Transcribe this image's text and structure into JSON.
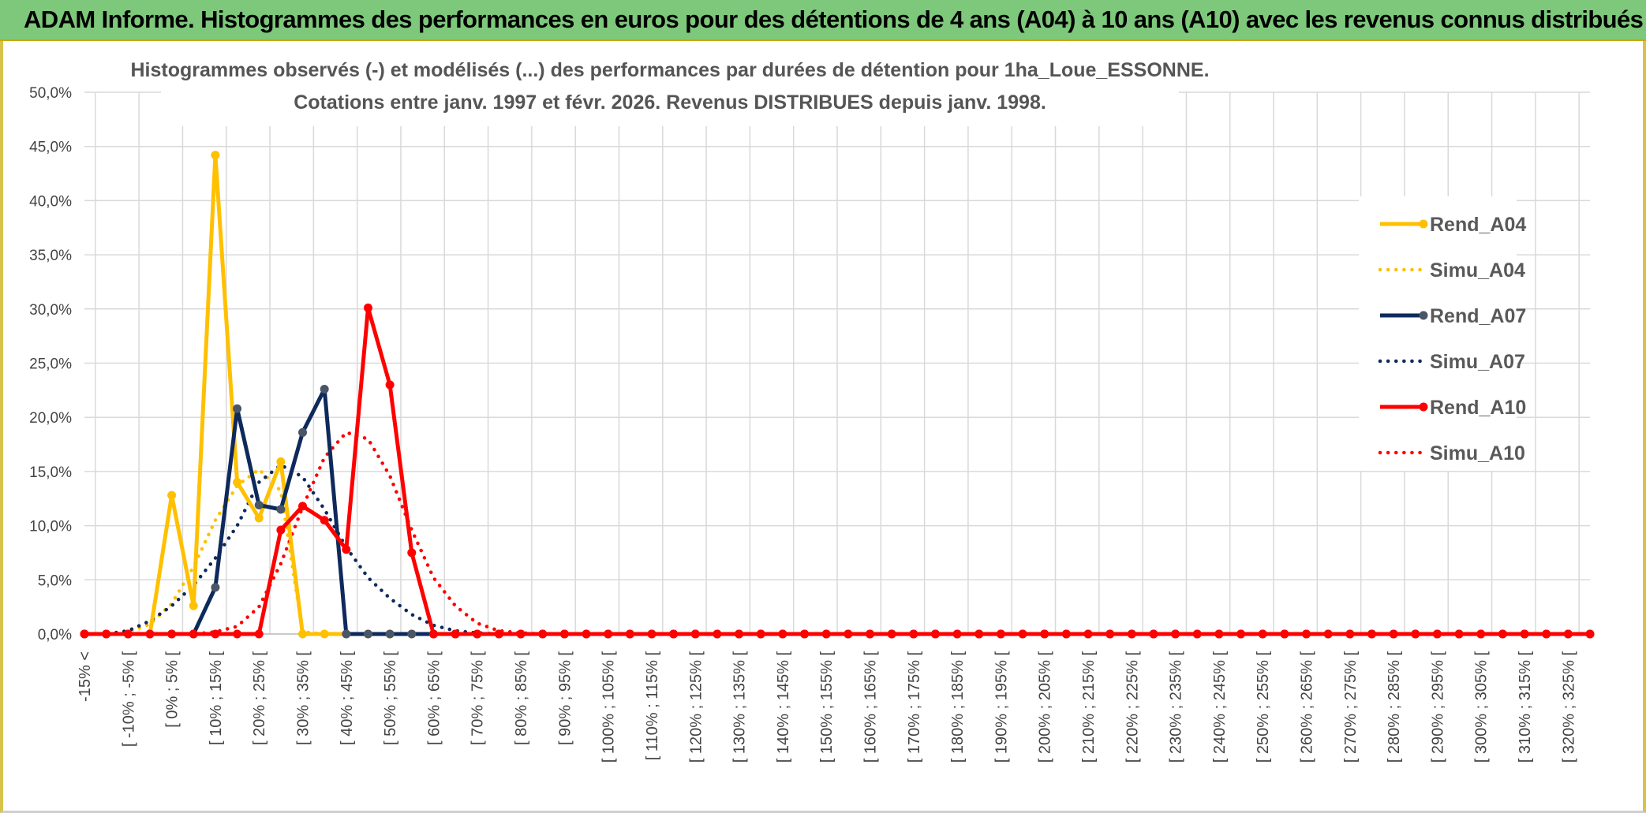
{
  "header": {
    "title": "ADAM Informe. Histogrammes des performances en euros pour des détentions de 4 ans (A04) à 10 ans (A10) avec les revenus connus distribués"
  },
  "chart_data": {
    "type": "line",
    "title": "Histogrammes observés (-) et modélisés (...) des performances par durées de détention pour 1ha_Loue_ESSONNE.",
    "subtitle": "Cotations entre janv. 1997 et févr. 2026. Revenus DISTRIBUES depuis janv. 1998.",
    "xlabel": "",
    "ylabel": "",
    "ylim": [
      0,
      50
    ],
    "yticks": [
      "0,0%",
      "5,0%",
      "10,0%",
      "15,0%",
      "20,0%",
      "25,0%",
      "30,0%",
      "35,0%",
      "40,0%",
      "45,0%",
      "50,0%"
    ],
    "grid": true,
    "legend_position": "right",
    "x": [
      -15,
      -10,
      -5,
      0,
      5,
      10,
      15,
      20,
      25,
      30,
      35,
      40,
      45,
      50,
      55,
      60,
      65,
      70,
      75,
      80,
      85,
      90,
      95,
      100,
      105,
      110,
      115,
      120,
      125,
      130,
      135,
      140,
      145,
      150,
      155,
      160,
      165,
      170,
      175,
      180,
      185,
      190,
      195,
      200,
      205,
      210,
      215,
      220,
      225,
      230,
      235,
      240,
      245,
      250,
      255,
      260,
      265,
      270,
      275,
      280,
      285,
      290,
      295,
      300,
      305,
      310,
      315,
      320,
      325,
      330
    ],
    "x_tick_labels": [
      "-15% <",
      "[ -10% ; -5% [",
      "[ 0% ; 5% [",
      "[ 10% ; 15% [",
      "[ 20% ; 25% [",
      "[ 30% ; 35% [",
      "[ 40% ; 45% [",
      "[ 50% ; 55% [",
      "[ 60% ; 65% [",
      "[ 70% ; 75% [",
      "[ 80% ; 85% [",
      "[ 90% ; 95% [",
      "[ 100% ; 105% [",
      "[ 110% ; 115% [",
      "[ 120% ; 125% [",
      "[ 130% ; 135% [",
      "[ 140% ; 145% [",
      "[ 150% ; 155% [",
      "[ 160% ; 165% [",
      "[ 170% ; 175% [",
      "[ 180% ; 185% [",
      "[ 190% ; 195% [",
      "[ 200% ; 205% [",
      "[ 210% ; 215% [",
      "[ 220% ; 225% [",
      "[ 230% ; 235% [",
      "[ 240% ; 245% [",
      "[ 250% ; 255% [",
      "[ 260% ; 265% [",
      "[ 270% ; 275% [",
      "[ 280% ; 285% [",
      "[ 290% ; 295% [",
      "[ 300% ; 305% [",
      "[ 310% ; 315% [",
      "[ 320% ; 325% ["
    ],
    "x_tick_values": [
      -15,
      -5,
      5,
      15,
      25,
      35,
      45,
      55,
      65,
      75,
      85,
      95,
      105,
      115,
      125,
      135,
      145,
      155,
      165,
      175,
      185,
      195,
      205,
      215,
      225,
      235,
      245,
      255,
      265,
      275,
      285,
      295,
      305,
      315,
      325
    ],
    "series": [
      {
        "name": "Rend_A04",
        "style": "solid",
        "markers": true,
        "color": "#ffc000",
        "values": [
          0,
          0,
          0,
          0,
          12.8,
          2.6,
          44.2,
          14,
          10.7,
          15.9,
          0,
          0,
          0,
          0,
          0,
          0,
          0,
          0,
          0,
          0,
          0,
          0,
          0,
          0,
          0,
          0,
          0,
          0,
          0,
          0,
          0,
          0,
          0,
          0,
          0,
          0,
          0,
          0,
          0,
          0,
          0,
          0,
          0,
          0,
          0,
          0,
          0,
          0,
          0,
          0,
          0,
          0,
          0,
          0,
          0,
          0,
          0,
          0,
          0,
          0,
          0,
          0,
          0,
          0,
          0,
          0,
          0,
          0,
          0,
          0
        ]
      },
      {
        "name": "Simu_A04",
        "style": "dotted",
        "markers": false,
        "color": "#ffc000",
        "values": [
          0,
          0,
          0.2,
          0.9,
          2.8,
          6.2,
          10.5,
          13.7,
          15.2,
          13.2,
          0.2,
          0,
          0,
          0,
          0,
          0,
          0,
          0,
          0,
          0,
          0,
          0,
          0,
          0,
          0,
          0,
          0,
          0,
          0,
          0,
          0,
          0,
          0,
          0,
          0,
          0,
          0,
          0,
          0,
          0,
          0,
          0,
          0,
          0,
          0,
          0,
          0,
          0,
          0,
          0,
          0,
          0,
          0,
          0,
          0,
          0,
          0,
          0,
          0,
          0,
          0,
          0,
          0,
          0,
          0,
          0,
          0,
          0,
          0,
          0
        ]
      },
      {
        "name": "Rend_A07",
        "style": "solid",
        "markers": true,
        "color": "#0e2a5c",
        "values": [
          0,
          0,
          0,
          0,
          0,
          0,
          4.3,
          20.8,
          11.9,
          11.5,
          18.6,
          22.6,
          0,
          0,
          0,
          0,
          0,
          0,
          0,
          0,
          0,
          0,
          0,
          0,
          0,
          0,
          0,
          0,
          0,
          0,
          0,
          0,
          0,
          0,
          0,
          0,
          0,
          0,
          0,
          0,
          0,
          0,
          0,
          0,
          0,
          0,
          0,
          0,
          0,
          0,
          0,
          0,
          0,
          0,
          0,
          0,
          0,
          0,
          0,
          0,
          0,
          0,
          0,
          0,
          0,
          0,
          0,
          0,
          0,
          0
        ]
      },
      {
        "name": "Simu_A07",
        "style": "dotted",
        "markers": false,
        "color": "#0e2a5c",
        "values": [
          0,
          0,
          0.3,
          1.2,
          2.6,
          4.5,
          7,
          10,
          14,
          15.6,
          14.5,
          11.5,
          8,
          5.2,
          3.3,
          1.8,
          0.8,
          0.3,
          0.1,
          0,
          0,
          0,
          0,
          0,
          0,
          0,
          0,
          0,
          0,
          0,
          0,
          0,
          0,
          0,
          0,
          0,
          0,
          0,
          0,
          0,
          0,
          0,
          0,
          0,
          0,
          0,
          0,
          0,
          0,
          0,
          0,
          0,
          0,
          0,
          0,
          0,
          0,
          0,
          0,
          0,
          0,
          0,
          0,
          0,
          0,
          0,
          0,
          0,
          0,
          0
        ]
      },
      {
        "name": "Rend_A10",
        "style": "solid",
        "markers": true,
        "color": "#ff0000",
        "values": [
          0,
          0,
          0,
          0,
          0,
          0,
          0,
          0,
          0,
          9.6,
          11.8,
          10.5,
          7.8,
          30.1,
          23,
          7.5,
          0,
          0,
          0,
          0,
          0,
          0,
          0,
          0,
          0,
          0,
          0,
          0,
          0,
          0,
          0,
          0,
          0,
          0,
          0,
          0,
          0,
          0,
          0,
          0,
          0,
          0,
          0,
          0,
          0,
          0,
          0,
          0,
          0,
          0,
          0,
          0,
          0,
          0,
          0,
          0,
          0,
          0,
          0,
          0,
          0,
          0,
          0,
          0,
          0,
          0,
          0,
          0,
          0,
          0
        ]
      },
      {
        "name": "Simu_A10",
        "style": "dotted",
        "markers": false,
        "color": "#ff0000",
        "values": [
          0,
          0,
          0,
          0,
          0,
          0,
          0.2,
          0.7,
          2.5,
          6.5,
          11.7,
          16.3,
          18.6,
          18,
          14.6,
          9.6,
          5.2,
          2.6,
          1,
          0.3,
          0.1,
          0,
          0,
          0,
          0,
          0,
          0,
          0,
          0,
          0,
          0,
          0,
          0,
          0,
          0,
          0,
          0,
          0,
          0,
          0,
          0,
          0,
          0,
          0,
          0,
          0,
          0,
          0,
          0,
          0,
          0,
          0,
          0,
          0,
          0,
          0,
          0,
          0,
          0,
          0,
          0,
          0,
          0,
          0,
          0,
          0,
          0,
          0,
          0,
          0
        ]
      }
    ]
  }
}
